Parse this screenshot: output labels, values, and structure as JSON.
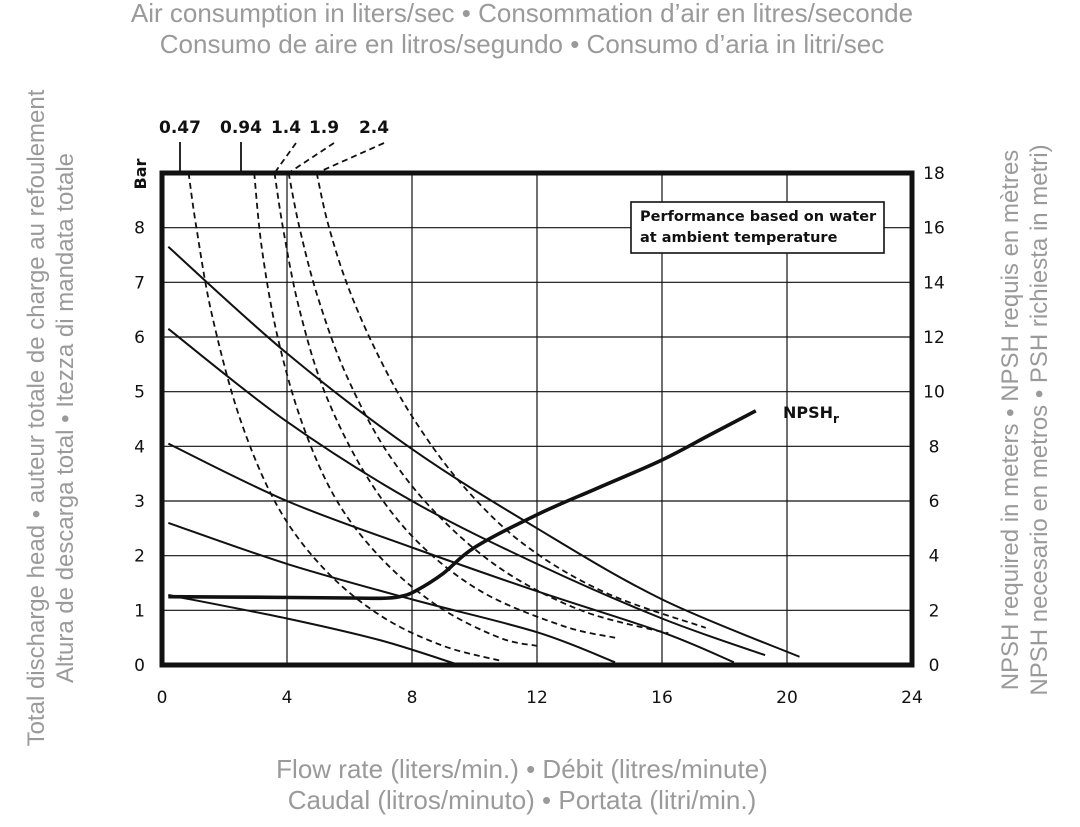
{
  "chart_data": {
    "type": "line",
    "title_lines": [
      "Air consumption in liters/sec • Consommation d’air en litres/seconde",
      "Consumo de aire en litros/segundo • Consumo d’aria in litri/sec"
    ],
    "xlabel_lines": [
      "Flow rate (liters/min.) • Débit (litres/minute)",
      "Caudal (litros/minuto) • Portata (litri/min.)"
    ],
    "ylabel_lines": [
      "Total discharge head • auteur totale de charge au refoulement",
      "Altura de descarga total • Itezza di mandata totale"
    ],
    "y2label_lines": [
      "NPSH required in meters • NPSH requis en mètres",
      "NPSH necesario en metros • PSH richiesta in metri)"
    ],
    "y_unit": "Bar",
    "xlim": [
      0,
      24
    ],
    "ylim": [
      0,
      9
    ],
    "y2lim": [
      0,
      18
    ],
    "x_ticks": [
      "0",
      "4",
      "8",
      "12",
      "16",
      "20",
      "24"
    ],
    "y_ticks": [
      "0",
      "1",
      "2",
      "3",
      "4",
      "5",
      "6",
      "7",
      "8"
    ],
    "y2_ticks": [
      "0",
      "2",
      "4",
      "6",
      "8",
      "10",
      "12",
      "14",
      "16",
      "18"
    ],
    "grid": true,
    "note_lines": [
      "Performance based on water",
      "at ambient temperature"
    ],
    "pressure_curves": [
      {
        "points": [
          [
            0.2,
            7.65
          ],
          [
            4,
            5.7
          ],
          [
            8,
            3.95
          ],
          [
            12,
            2.5
          ],
          [
            16,
            1.2
          ],
          [
            20.4,
            0.15
          ]
        ]
      },
      {
        "points": [
          [
            0.2,
            6.15
          ],
          [
            4,
            4.45
          ],
          [
            8,
            3.0
          ],
          [
            12,
            1.85
          ],
          [
            16,
            0.85
          ],
          [
            19.3,
            0.18
          ]
        ]
      },
      {
        "points": [
          [
            0.2,
            4.05
          ],
          [
            4,
            3.0
          ],
          [
            8,
            2.15
          ],
          [
            12,
            1.35
          ],
          [
            16,
            0.6
          ],
          [
            18.3,
            0.05
          ]
        ]
      },
      {
        "points": [
          [
            0.2,
            2.6
          ],
          [
            4,
            1.85
          ],
          [
            8,
            1.2
          ],
          [
            12,
            0.6
          ],
          [
            14.5,
            0.05
          ]
        ]
      },
      {
        "points": [
          [
            0.2,
            1.28
          ],
          [
            4,
            0.85
          ],
          [
            7,
            0.45
          ],
          [
            9.5,
            0.0
          ]
        ]
      }
    ],
    "air_consumption_curves": [
      {
        "label": "0.47",
        "leader_x": 0.85,
        "points": [
          [
            0.85,
            9.0
          ],
          [
            1.1,
            8.0
          ],
          [
            1.6,
            6.4
          ],
          [
            2.5,
            4.5
          ],
          [
            3.7,
            2.9
          ],
          [
            5.2,
            1.75
          ],
          [
            7.0,
            0.9
          ],
          [
            9.0,
            0.35
          ],
          [
            10.9,
            0.07
          ]
        ]
      },
      {
        "label": "0.94",
        "leader_x": 2.95,
        "points": [
          [
            2.95,
            9.0
          ],
          [
            3.2,
            7.6
          ],
          [
            3.7,
            6.0
          ],
          [
            4.5,
            4.4
          ],
          [
            5.6,
            3.0
          ],
          [
            7.1,
            1.9
          ],
          [
            8.9,
            1.05
          ],
          [
            10.8,
            0.5
          ],
          [
            12.0,
            0.35
          ]
        ]
      },
      {
        "label": "1.4",
        "leader_x": 3.6,
        "points": [
          [
            3.6,
            9.0
          ],
          [
            3.9,
            7.9
          ],
          [
            4.4,
            6.5
          ],
          [
            5.2,
            5.0
          ],
          [
            6.5,
            3.5
          ],
          [
            8.1,
            2.3
          ],
          [
            10.2,
            1.35
          ],
          [
            12.8,
            0.72
          ],
          [
            14.5,
            0.5
          ]
        ]
      },
      {
        "label": "1.9",
        "leader_x": 4.05,
        "points": [
          [
            4.05,
            9.0
          ],
          [
            4.4,
            8.0
          ],
          [
            5.0,
            6.7
          ],
          [
            5.9,
            5.3
          ],
          [
            7.2,
            3.9
          ],
          [
            8.9,
            2.7
          ],
          [
            11.0,
            1.7
          ],
          [
            13.5,
            0.98
          ],
          [
            16.2,
            0.58
          ]
        ]
      },
      {
        "label": "2.4",
        "leader_x": 4.95,
        "points": [
          [
            4.95,
            9.0
          ],
          [
            5.3,
            8.1
          ],
          [
            5.9,
            7.0
          ],
          [
            6.8,
            5.8
          ],
          [
            8.0,
            4.55
          ],
          [
            9.6,
            3.3
          ],
          [
            11.6,
            2.2
          ],
          [
            14.2,
            1.32
          ],
          [
            17.4,
            0.68
          ]
        ]
      }
    ],
    "npshr": {
      "label": "NPSH",
      "label_sub": "r",
      "units": "meters",
      "points": [
        [
          0.2,
          2.5
        ],
        [
          3,
          2.48
        ],
        [
          6,
          2.45
        ],
        [
          7,
          2.44
        ],
        [
          7.6,
          2.5
        ],
        [
          8.1,
          2.7
        ],
        [
          9,
          3.35
        ],
        [
          10,
          4.3
        ],
        [
          12,
          5.5
        ],
        [
          14,
          6.5
        ],
        [
          16,
          7.5
        ],
        [
          17.5,
          8.4
        ],
        [
          19,
          9.3
        ]
      ]
    }
  }
}
